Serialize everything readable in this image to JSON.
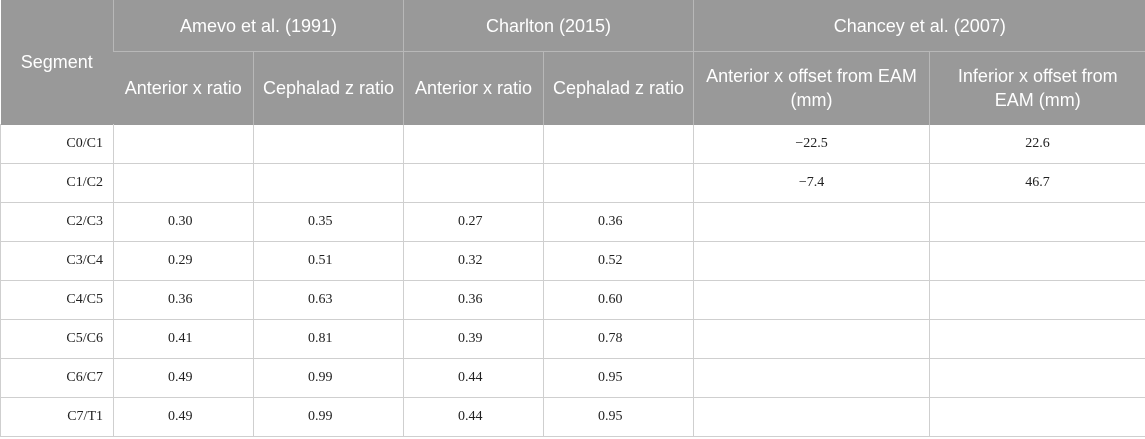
{
  "groups": {
    "segment": "Segment",
    "amevo": "Amevo et al. (1991)",
    "charlton": "Charlton (2015)",
    "chancey": "Chancey et al. (2007)"
  },
  "subheaders": {
    "amevo_x": "Anterior x ratio",
    "amevo_z": "Cephalad z ratio",
    "charlton_x": "Anterior x ratio",
    "charlton_z": "Cephalad z ratio",
    "chancey_x": "Anterior x offset from EAM (mm)",
    "chancey_inf": "Inferior x offset from EAM (mm)"
  },
  "rows": [
    {
      "segment": "C0/C1",
      "amevo_x": "",
      "amevo_z": "",
      "charlton_x": "",
      "charlton_z": "",
      "chancey_x": "−22.5",
      "chancey_inf": "22.6"
    },
    {
      "segment": "C1/C2",
      "amevo_x": "",
      "amevo_z": "",
      "charlton_x": "",
      "charlton_z": "",
      "chancey_x": "−7.4",
      "chancey_inf": "46.7"
    },
    {
      "segment": "C2/C3",
      "amevo_x": "0.30",
      "amevo_z": "0.35",
      "charlton_x": "0.27",
      "charlton_z": "0.36",
      "chancey_x": "",
      "chancey_inf": ""
    },
    {
      "segment": "C3/C4",
      "amevo_x": "0.29",
      "amevo_z": "0.51",
      "charlton_x": "0.32",
      "charlton_z": "0.52",
      "chancey_x": "",
      "chancey_inf": ""
    },
    {
      "segment": "C4/C5",
      "amevo_x": "0.36",
      "amevo_z": "0.63",
      "charlton_x": "0.36",
      "charlton_z": "0.60",
      "chancey_x": "",
      "chancey_inf": ""
    },
    {
      "segment": "C5/C6",
      "amevo_x": "0.41",
      "amevo_z": "0.81",
      "charlton_x": "0.39",
      "charlton_z": "0.78",
      "chancey_x": "",
      "chancey_inf": ""
    },
    {
      "segment": "C6/C7",
      "amevo_x": "0.49",
      "amevo_z": "0.99",
      "charlton_x": "0.44",
      "charlton_z": "0.95",
      "chancey_x": "",
      "chancey_inf": ""
    },
    {
      "segment": "C7/T1",
      "amevo_x": "0.49",
      "amevo_z": "0.99",
      "charlton_x": "0.44",
      "charlton_z": "0.95",
      "chancey_x": "",
      "chancey_inf": ""
    }
  ]
}
